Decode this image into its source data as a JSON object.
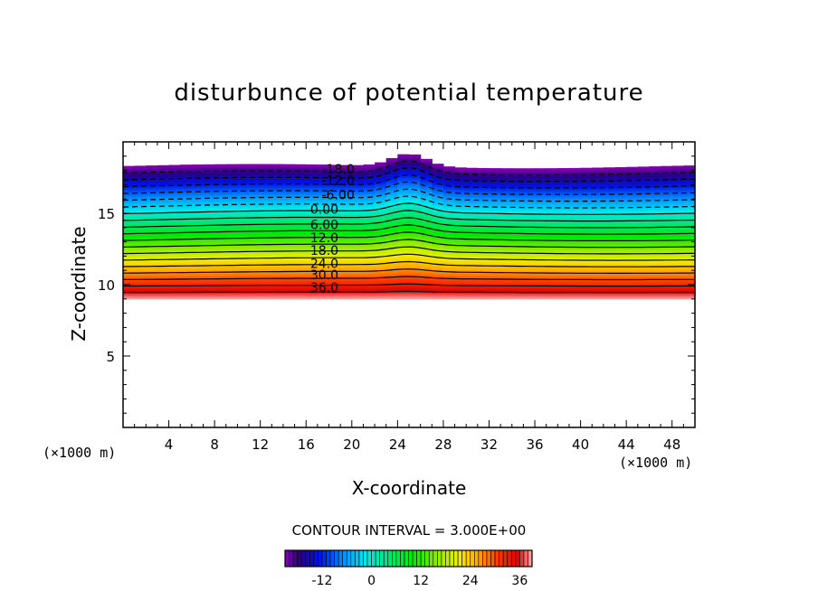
{
  "chart_data": {
    "type": "heatmap",
    "title": "disturbunce of potential temperature",
    "xlabel": "X-coordinate",
    "ylabel": "Z-coordinate",
    "x_unit": "(×1000 m)",
    "y_unit": "(×1000 m)",
    "xlim": [
      0,
      50
    ],
    "ylim": [
      0,
      20
    ],
    "x_ticks": [
      4,
      8,
      12,
      16,
      20,
      24,
      28,
      32,
      36,
      40,
      44,
      48
    ],
    "x_tick_labels": [
      "4",
      "8",
      "12",
      "16",
      "20",
      "24",
      "28",
      "32",
      "36",
      "40",
      "44",
      "48"
    ],
    "y_ticks": [
      5,
      10,
      15
    ],
    "y_tick_labels": [
      "5",
      "10",
      "15"
    ],
    "contour_interval_label": "CONTOUR INTERVAL = 3.000E+00",
    "contour_interval": 3.0,
    "field_range": [
      -21,
      39
    ],
    "field_z_bottom_km": 9.0,
    "field_z_top_km": 18.3,
    "field_top_bump": {
      "x_center_km": 25,
      "height_km": 0.9
    },
    "contour_labels": [
      {
        "text": "-18.0",
        "value": -18,
        "x": 18.8,
        "z": 18.1
      },
      {
        "text": "-12.0",
        "value": -12,
        "x": 18.8,
        "z": 17.3
      },
      {
        "text": "-6.00",
        "value": -6,
        "x": 18.8,
        "z": 16.3
      },
      {
        "text": "0.00",
        "value": 0,
        "x": 17.6,
        "z": 15.3
      },
      {
        "text": "6.00",
        "value": 6,
        "x": 17.6,
        "z": 14.2
      },
      {
        "text": "12.0",
        "value": 12,
        "x": 17.6,
        "z": 13.3
      },
      {
        "text": "18.0",
        "value": 18,
        "x": 17.6,
        "z": 12.4
      },
      {
        "text": "24.0",
        "value": 24,
        "x": 17.6,
        "z": 11.5
      },
      {
        "text": "30.0",
        "value": 30,
        "x": 17.6,
        "z": 10.7
      },
      {
        "text": "36.0",
        "value": 36,
        "x": 17.6,
        "z": 9.8
      }
    ],
    "colorbar": {
      "range": [
        -21,
        39
      ],
      "ticks": [
        -12,
        0,
        12,
        24,
        36
      ],
      "tick_labels": [
        "-12",
        "0",
        "12",
        "24",
        "36"
      ]
    }
  }
}
